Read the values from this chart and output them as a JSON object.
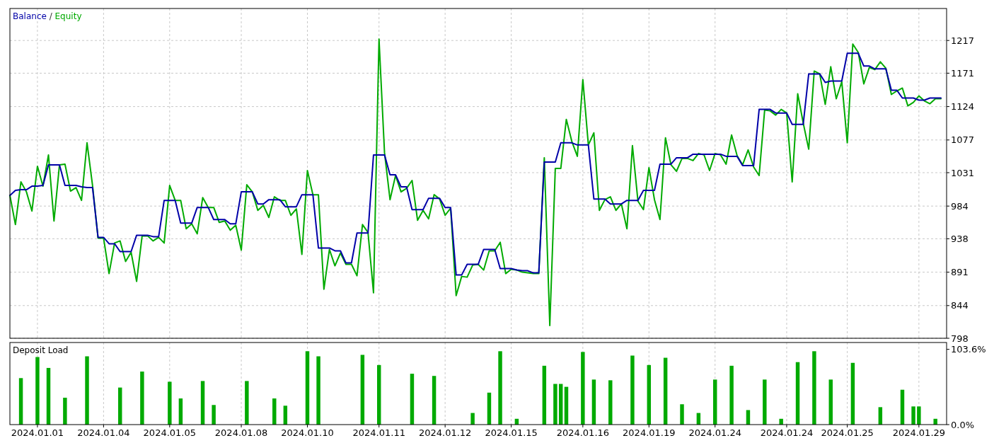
{
  "chart_data": [
    {
      "type": "line",
      "legend": "top left",
      "grid": true,
      "tick_labels": "y",
      "ylim": [
        798,
        1262
      ],
      "yticks": [
        798,
        844,
        891,
        938,
        984,
        1031,
        1077,
        1124,
        1171,
        1217
      ],
      "annotations": [
        "/"
      ],
      "categories": [
        null,
        null,
        null,
        null,
        null,
        "2024.01.01",
        null,
        null,
        null,
        null,
        null,
        null,
        null,
        null,
        null,
        null,
        null,
        "2024.01.04",
        null,
        null,
        null,
        null,
        null,
        null,
        null,
        null,
        null,
        null,
        null,
        "2024.01.05",
        null,
        null,
        null,
        null,
        null,
        null,
        null,
        null,
        null,
        null,
        null,
        null,
        "2024.01.08",
        null,
        null,
        null,
        null,
        null,
        null,
        null,
        null,
        null,
        null,
        null,
        "2024.01.10",
        null,
        null,
        null,
        null,
        null,
        null,
        null,
        null,
        null,
        null,
        null,
        null,
        "2024.01.11",
        null,
        null,
        null,
        null,
        null,
        null,
        null,
        null,
        null,
        null,
        null,
        "2024.01.12",
        null,
        null,
        null,
        null,
        null,
        null,
        null,
        null,
        null,
        null,
        null,
        "2024.01.15",
        null,
        null,
        null,
        null,
        null,
        null,
        null,
        null,
        null,
        null,
        null,
        null,
        "2024.01.16",
        null,
        null,
        null,
        null,
        null,
        null,
        null,
        null,
        null,
        null,
        null,
        "2024.01.19",
        null,
        null,
        null,
        null,
        null,
        null,
        null,
        null,
        null,
        null,
        null,
        "2024.01.24",
        null,
        null,
        null,
        null,
        null,
        null,
        null,
        null,
        null,
        null,
        null,
        null,
        "2024.01.24",
        null,
        null,
        null,
        null,
        null,
        null,
        null,
        null,
        null,
        null,
        "2024.01.25",
        null,
        null,
        null,
        null,
        null,
        null,
        null,
        null,
        null,
        null,
        null,
        null,
        "2024.01.29",
        null,
        null,
        null,
        null
      ],
      "series": [
        {
          "name": "Balance",
          "color": "#0000a8",
          "values": [
            999,
            1006,
            1007,
            1007,
            1012,
            1012,
            1013,
            1042,
            1042,
            1042,
            1013,
            1013,
            1013,
            1011,
            1010,
            1010,
            940,
            940,
            931,
            931,
            920,
            920,
            920,
            943,
            943,
            943,
            941,
            941,
            992,
            992,
            992,
            960,
            960,
            960,
            982,
            982,
            982,
            965,
            965,
            965,
            959,
            959,
            1004,
            1004,
            1004,
            987,
            987,
            993,
            993,
            993,
            983,
            983,
            983,
            1000,
            1000,
            1000,
            925,
            925,
            925,
            921,
            921,
            904,
            904,
            946,
            946,
            946,
            1056,
            1056,
            1056,
            1028,
            1028,
            1011,
            1011,
            979,
            979,
            979,
            995,
            995,
            995,
            982,
            982,
            887,
            887,
            902,
            902,
            902,
            923,
            923,
            923,
            896,
            896,
            896,
            894,
            893,
            893,
            890,
            890,
            1046,
            1046,
            1046,
            1073,
            1073,
            1073,
            1070,
            1070,
            1070,
            994,
            994,
            994,
            987,
            987,
            987,
            992,
            992,
            992,
            1006,
            1006,
            1006,
            1043,
            1043,
            1043,
            1052,
            1052,
            1052,
            1057,
            1057,
            1057,
            1057,
            1057,
            1057,
            1054,
            1054,
            1054,
            1041,
            1041,
            1041,
            1120,
            1120,
            1120,
            1115,
            1115,
            1115,
            1099,
            1099,
            1099,
            1170,
            1170,
            1170,
            1158,
            1160,
            1160,
            1160,
            1199,
            1199,
            1199,
            1181,
            1181,
            1177,
            1177,
            1177,
            1147,
            1147,
            1136,
            1136,
            1136,
            1133,
            1133,
            1136,
            1136,
            1136
          ]
        },
        {
          "name": "Equity",
          "color": "#00aa00",
          "values": [
            999,
            958,
            1018,
            1004,
            977,
            1040,
            1012,
            1056,
            963,
            1042,
            1043,
            1005,
            1010,
            992,
            1073,
            1013,
            939,
            939,
            889,
            932,
            935,
            906,
            919,
            878,
            942,
            942,
            935,
            940,
            932,
            1013,
            992,
            992,
            952,
            959,
            945,
            996,
            982,
            982,
            961,
            963,
            950,
            957,
            922,
            1014,
            1004,
            978,
            985,
            968,
            997,
            992,
            992,
            971,
            980,
            916,
            1034,
            1000,
            1000,
            867,
            923,
            900,
            918,
            902,
            902,
            886,
            958,
            947,
            862,
            1219,
            1059,
            993,
            1027,
            1004,
            1009,
            1020,
            964,
            978,
            966,
            1000,
            994,
            971,
            981,
            858,
            885,
            884,
            901,
            902,
            894,
            921,
            921,
            933,
            889,
            895,
            894,
            891,
            890,
            889,
            889,
            1052,
            816,
            1037,
            1037,
            1106,
            1075,
            1054,
            1162,
            1070,
            1087,
            978,
            993,
            997,
            978,
            987,
            952,
            1069,
            991,
            979,
            1038,
            993,
            965,
            1080,
            1042,
            1033,
            1051,
            1051,
            1048,
            1058,
            1056,
            1034,
            1058,
            1056,
            1043,
            1084,
            1055,
            1042,
            1063,
            1039,
            1027,
            1119,
            1118,
            1112,
            1120,
            1115,
            1018,
            1142,
            1101,
            1064,
            1174,
            1170,
            1127,
            1180,
            1135,
            1159,
            1073,
            1212,
            1200,
            1156,
            1179,
            1176,
            1187,
            1178,
            1141,
            1146,
            1150,
            1125,
            1130,
            1139,
            1132,
            1128,
            1135,
            1135
          ]
        }
      ]
    },
    {
      "type": "bar",
      "title": "Deposit Load",
      "color": "#00aa00",
      "grid": "x",
      "ylim": [
        0,
        113
      ],
      "yticks": [
        {
          "value": 0,
          "label": "0.0%"
        },
        {
          "value": 103.6,
          "label": "103.6%"
        }
      ],
      "categories": [
        null,
        null,
        null,
        null,
        null,
        "2024.01.01",
        null,
        null,
        null,
        null,
        null,
        null,
        null,
        null,
        null,
        null,
        null,
        "2024.01.04",
        null,
        null,
        null,
        null,
        null,
        null,
        null,
        null,
        null,
        null,
        null,
        "2024.01.05",
        null,
        null,
        null,
        null,
        null,
        null,
        null,
        null,
        null,
        null,
        null,
        null,
        "2024.01.08",
        null,
        null,
        null,
        null,
        null,
        null,
        null,
        null,
        null,
        null,
        null,
        "2024.01.10",
        null,
        null,
        null,
        null,
        null,
        null,
        null,
        null,
        null,
        null,
        null,
        null,
        "2024.01.11",
        null,
        null,
        null,
        null,
        null,
        null,
        null,
        null,
        null,
        null,
        null,
        "2024.01.12",
        null,
        null,
        null,
        null,
        null,
        null,
        null,
        null,
        null,
        null,
        null,
        "2024.01.15",
        null,
        null,
        null,
        null,
        null,
        null,
        null,
        null,
        null,
        null,
        null,
        null,
        "2024.01.16",
        null,
        null,
        null,
        null,
        null,
        null,
        null,
        null,
        null,
        null,
        null,
        "2024.01.19",
        null,
        null,
        null,
        null,
        null,
        null,
        null,
        null,
        null,
        null,
        null,
        "2024.01.24",
        null,
        null,
        null,
        null,
        null,
        null,
        null,
        null,
        null,
        null,
        null,
        null,
        "2024.01.24",
        null,
        null,
        null,
        null,
        null,
        null,
        null,
        null,
        null,
        null,
        "2024.01.25",
        null,
        null,
        null,
        null,
        null,
        null,
        null,
        null,
        null,
        null,
        null,
        null,
        "2024.01.29",
        null,
        null,
        null,
        null
      ],
      "values": [
        null,
        null,
        64,
        null,
        null,
        93,
        null,
        78,
        null,
        null,
        37,
        null,
        null,
        null,
        94,
        null,
        null,
        null,
        null,
        null,
        51,
        null,
        null,
        null,
        73,
        null,
        null,
        null,
        null,
        59,
        null,
        36,
        null,
        null,
        null,
        60,
        null,
        27,
        null,
        null,
        null,
        null,
        null,
        60,
        null,
        null,
        null,
        null,
        36,
        null,
        26,
        null,
        null,
        null,
        101,
        null,
        94,
        null,
        null,
        null,
        null,
        null,
        null,
        null,
        96,
        null,
        null,
        82,
        null,
        null,
        null,
        null,
        null,
        70,
        null,
        null,
        null,
        67,
        null,
        null,
        null,
        null,
        null,
        null,
        16,
        null,
        null,
        44,
        null,
        101,
        null,
        null,
        8,
        null,
        null,
        null,
        null,
        81,
        null,
        56,
        56,
        52,
        null,
        null,
        100,
        null,
        62,
        null,
        null,
        61,
        null,
        null,
        null,
        95,
        null,
        null,
        82,
        null,
        null,
        92,
        null,
        null,
        28,
        null,
        null,
        16,
        null,
        null,
        62,
        null,
        null,
        81,
        null,
        null,
        20,
        null,
        null,
        62,
        null,
        null,
        8,
        null,
        null,
        86,
        null,
        null,
        101,
        null,
        null,
        62,
        null,
        null,
        null,
        85,
        null,
        null,
        null,
        null,
        24,
        null,
        null,
        null,
        48,
        null,
        25,
        25,
        null,
        null,
        8,
        null
      ]
    }
  ]
}
